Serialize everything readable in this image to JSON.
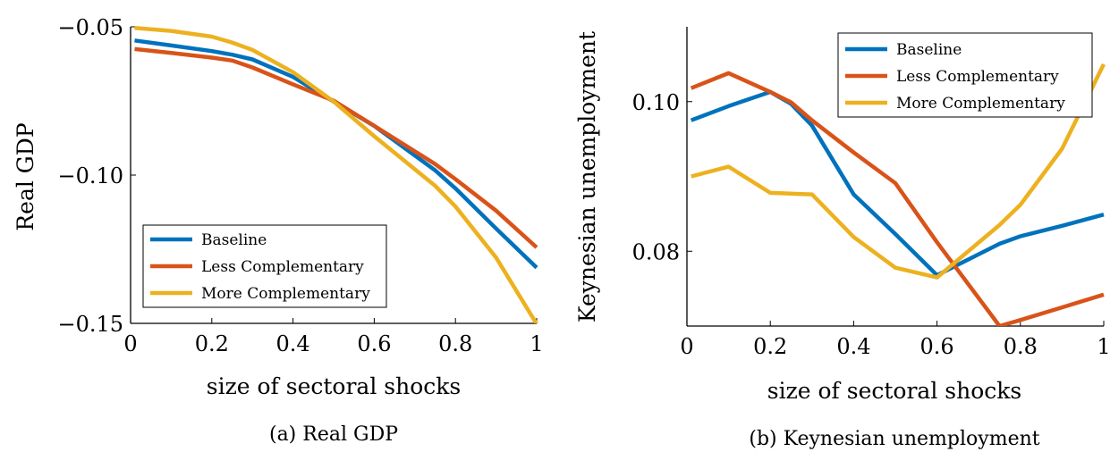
{
  "chart_data": [
    {
      "type": "line",
      "caption": "(a) Real GDP",
      "xlabel": "size of sectoral shocks",
      "ylabel": "Real GDP",
      "xlim": [
        0,
        1
      ],
      "ylim": [
        -0.15,
        -0.05
      ],
      "xticks": [
        "0",
        "0.2",
        "0.4",
        "0.6",
        "0.8",
        "1"
      ],
      "xtick_values": [
        0,
        0.2,
        0.4,
        0.6,
        0.8,
        1
      ],
      "yticks": [
        "−0.05",
        "−0.10",
        "−0.15"
      ],
      "ytick_values": [
        -0.05,
        -0.1,
        -0.15
      ],
      "legend_position": "bottom-left",
      "grid": false,
      "series": [
        {
          "name": "Baseline",
          "color": "#0072BD",
          "x": [
            0.01,
            0.1,
            0.2,
            0.25,
            0.3,
            0.4,
            0.5,
            0.6,
            0.75,
            0.8,
            0.9,
            1.0
          ],
          "y": [
            -0.0546,
            -0.0563,
            -0.0582,
            -0.0594,
            -0.061,
            -0.0669,
            -0.0752,
            -0.0834,
            -0.0984,
            -0.1045,
            -0.118,
            -0.1312
          ]
        },
        {
          "name": "Less Complementary",
          "color": "#D95319",
          "x": [
            0.01,
            0.1,
            0.2,
            0.25,
            0.3,
            0.4,
            0.5,
            0.6,
            0.75,
            0.8,
            0.9,
            1.0
          ],
          "y": [
            -0.0575,
            -0.0588,
            -0.0604,
            -0.0614,
            -0.0637,
            -0.0694,
            -0.0749,
            -0.0834,
            -0.0963,
            -0.1014,
            -0.112,
            -0.1244
          ]
        },
        {
          "name": "More Complementary",
          "color": "#EDB120",
          "x": [
            0.01,
            0.1,
            0.2,
            0.25,
            0.3,
            0.4,
            0.5,
            0.6,
            0.75,
            0.8,
            0.9,
            1.0
          ],
          "y": [
            -0.0504,
            -0.0514,
            -0.0533,
            -0.0553,
            -0.0578,
            -0.0653,
            -0.0752,
            -0.0869,
            -0.1036,
            -0.1106,
            -0.1278,
            -0.1502
          ]
        }
      ]
    },
    {
      "type": "line",
      "caption": "(b) Keynesian unemployment",
      "xlabel": "size of sectoral shocks",
      "ylabel": "Keynesian unemployment",
      "xlim": [
        0,
        1
      ],
      "ylim": [
        0.07,
        0.11
      ],
      "xticks": [
        "0",
        "0.2",
        "0.4",
        "0.6",
        "0.8",
        "1"
      ],
      "xtick_values": [
        0,
        0.2,
        0.4,
        0.6,
        0.8,
        1
      ],
      "yticks": [
        "0.10",
        "0.08"
      ],
      "ytick_values": [
        0.1,
        0.08
      ],
      "legend_position": "top-right",
      "grid": false,
      "series": [
        {
          "name": "Baseline",
          "color": "#0072BD",
          "x": [
            0.01,
            0.1,
            0.2,
            0.25,
            0.3,
            0.4,
            0.5,
            0.6,
            0.75,
            0.8,
            0.9,
            1.0
          ],
          "y": [
            0.0975,
            0.0994,
            0.1013,
            0.0997,
            0.0968,
            0.0876,
            0.0823,
            0.0768,
            0.081,
            0.082,
            0.0834,
            0.0849
          ]
        },
        {
          "name": "Less Complementary",
          "color": "#D95319",
          "x": [
            0.01,
            0.1,
            0.2,
            0.25,
            0.3,
            0.4,
            0.5,
            0.6,
            0.75,
            0.8,
            0.9,
            1.0
          ],
          "y": [
            0.1018,
            0.1038,
            0.1013,
            0.0999,
            0.0975,
            0.0932,
            0.0891,
            0.0812,
            0.07,
            0.0708,
            0.0725,
            0.0742
          ]
        },
        {
          "name": "More Complementary",
          "color": "#EDB120",
          "x": [
            0.01,
            0.1,
            0.2,
            0.25,
            0.3,
            0.4,
            0.5,
            0.6,
            0.75,
            0.8,
            0.9,
            1.0
          ],
          "y": [
            0.09,
            0.0913,
            0.0878,
            0.0877,
            0.0876,
            0.0819,
            0.0778,
            0.0765,
            0.0835,
            0.0862,
            0.0937,
            0.105
          ]
        }
      ]
    }
  ]
}
